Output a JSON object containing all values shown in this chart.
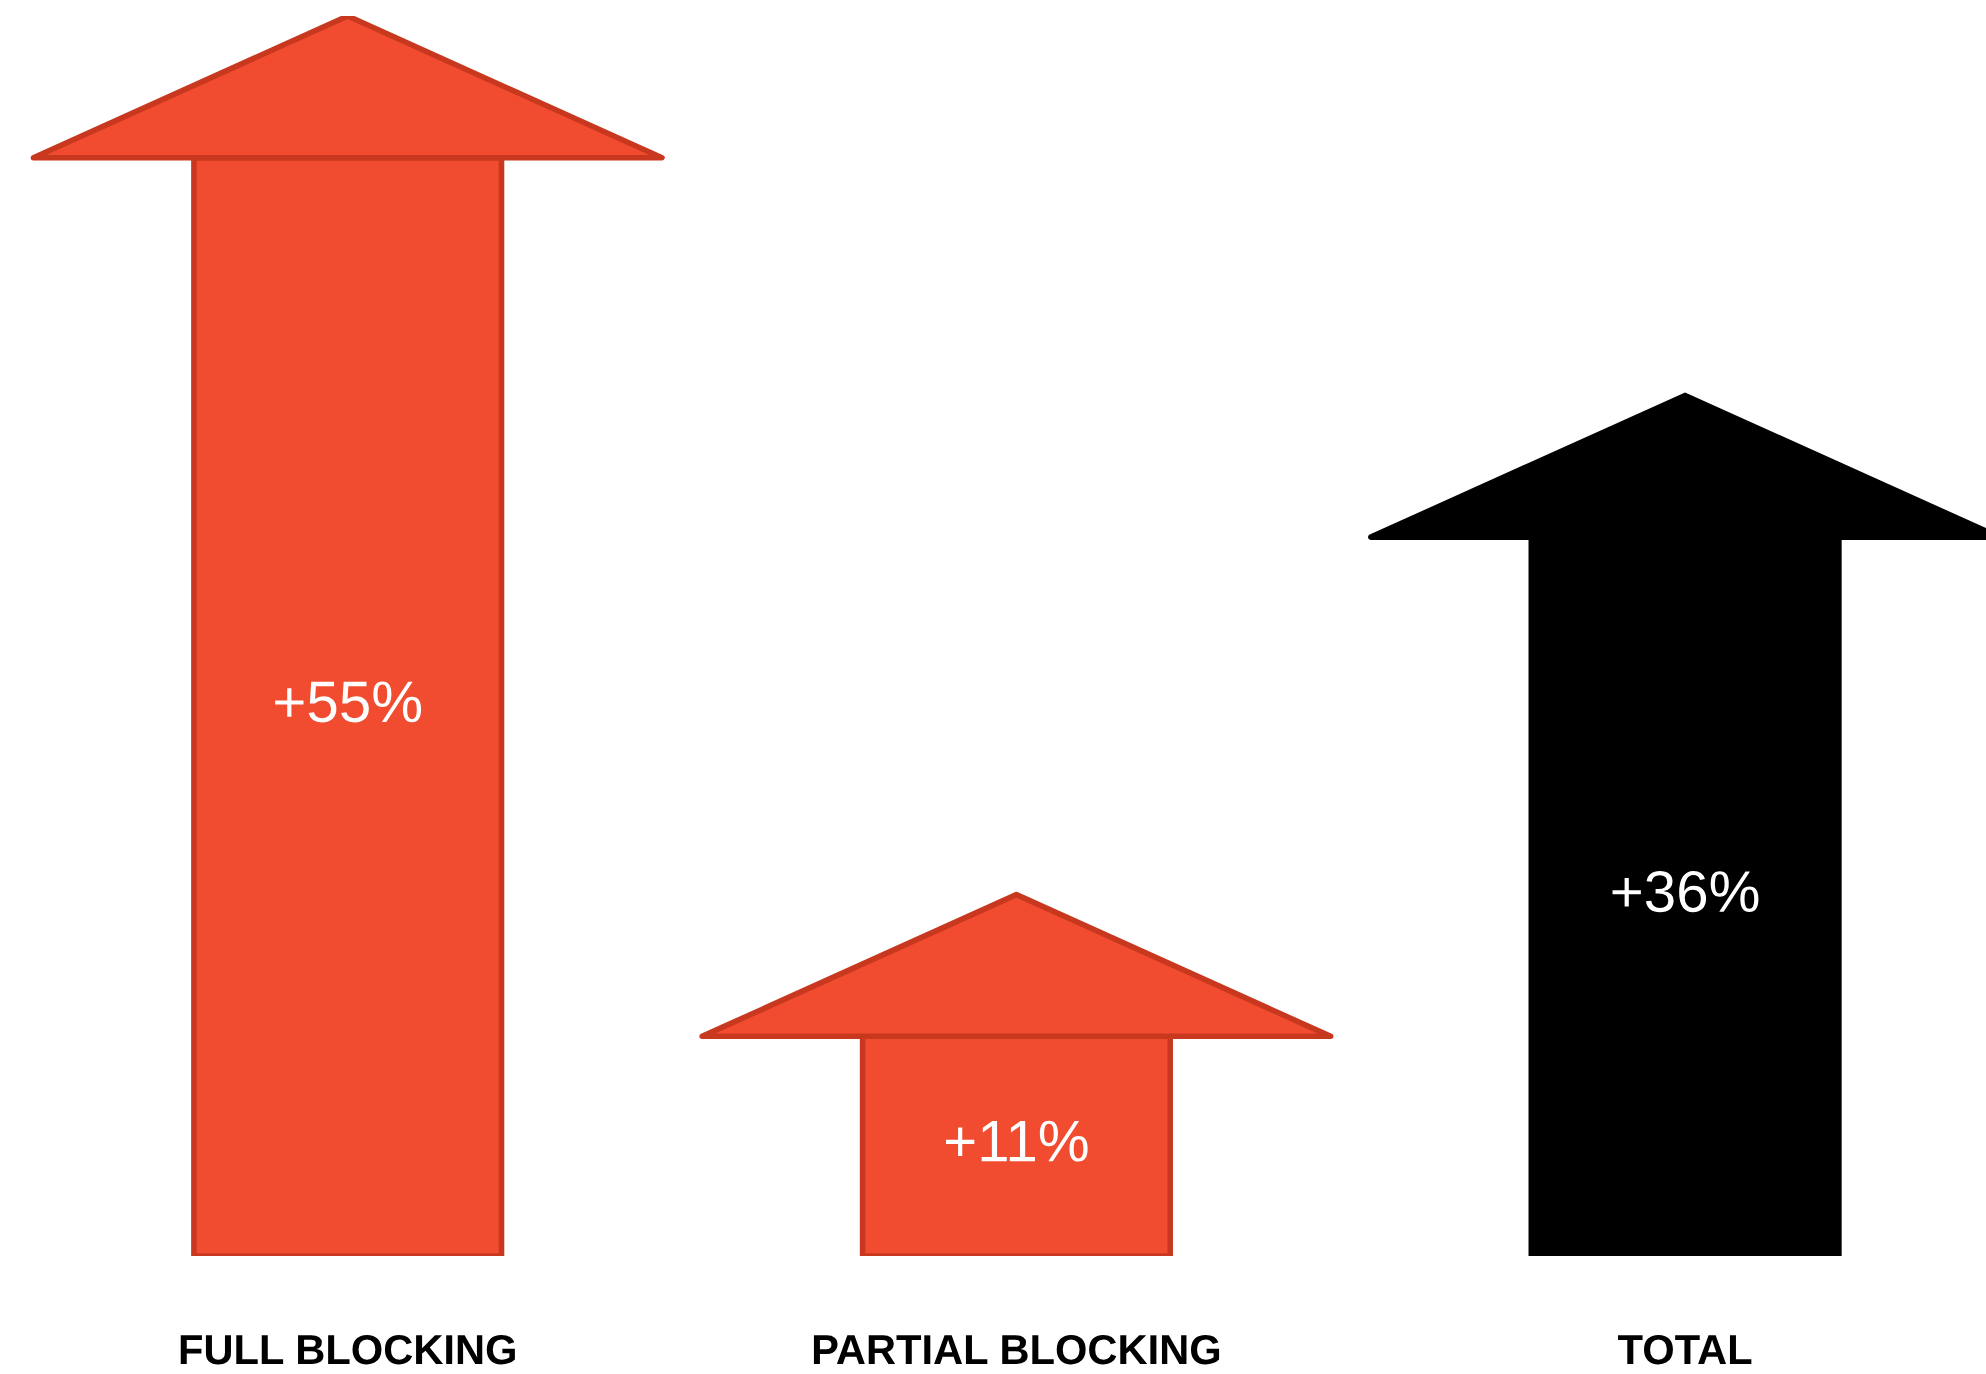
{
  "chart_data": {
    "type": "bar",
    "categories": [
      "FULL BLOCKING",
      "PARTIAL BLOCKING",
      "TOTAL"
    ],
    "values": [
      55,
      11,
      36
    ],
    "colors": [
      "#f24c30",
      "#f24c30",
      "#000000"
    ],
    "value_labels": [
      "+55%",
      "+11%",
      "+36%"
    ],
    "grid": false,
    "legend": false
  }
}
